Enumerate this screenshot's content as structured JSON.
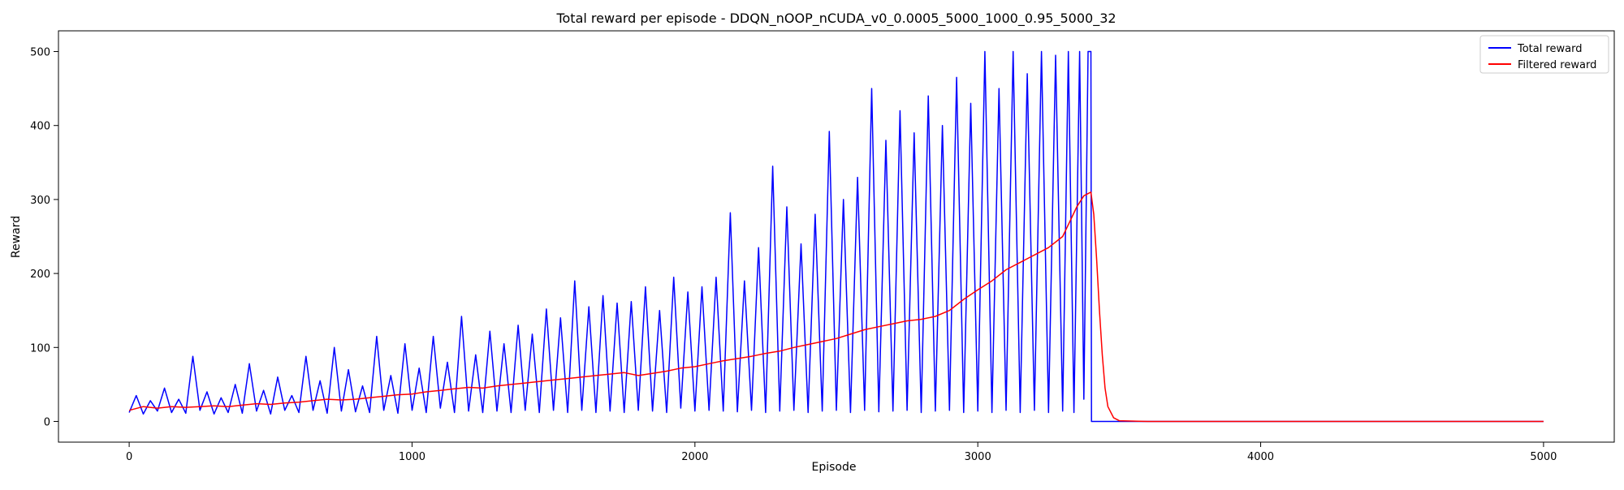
{
  "chart_data": {
    "type": "line",
    "title": "Total reward per episode - DDQN_nOOP_nCUDA_v0_0.0005_5000_1000_0.95_5000_32",
    "xlabel": "Episode",
    "ylabel": "Reward",
    "xlim": [
      -250,
      5250
    ],
    "ylim": [
      -28,
      528
    ],
    "xticks": [
      0,
      1000,
      2000,
      3000,
      4000,
      5000
    ],
    "yticks": [
      0,
      100,
      200,
      300,
      400,
      500
    ],
    "grid": false,
    "legend_position": "top-right",
    "series": [
      {
        "name": "Total reward",
        "color": "#0000ff",
        "points": [
          [
            0,
            12
          ],
          [
            25,
            35
          ],
          [
            50,
            10
          ],
          [
            75,
            28
          ],
          [
            100,
            14
          ],
          [
            125,
            45
          ],
          [
            150,
            12
          ],
          [
            175,
            30
          ],
          [
            200,
            11
          ],
          [
            225,
            88
          ],
          [
            250,
            15
          ],
          [
            275,
            40
          ],
          [
            300,
            10
          ],
          [
            325,
            32
          ],
          [
            350,
            12
          ],
          [
            375,
            50
          ],
          [
            400,
            11
          ],
          [
            425,
            78
          ],
          [
            450,
            14
          ],
          [
            475,
            42
          ],
          [
            500,
            10
          ],
          [
            525,
            60
          ],
          [
            550,
            15
          ],
          [
            575,
            35
          ],
          [
            600,
            12
          ],
          [
            625,
            88
          ],
          [
            650,
            15
          ],
          [
            675,
            55
          ],
          [
            700,
            11
          ],
          [
            725,
            100
          ],
          [
            750,
            14
          ],
          [
            775,
            70
          ],
          [
            800,
            13
          ],
          [
            825,
            48
          ],
          [
            850,
            12
          ],
          [
            875,
            115
          ],
          [
            900,
            15
          ],
          [
            925,
            62
          ],
          [
            950,
            11
          ],
          [
            975,
            105
          ],
          [
            1000,
            15
          ],
          [
            1025,
            72
          ],
          [
            1050,
            12
          ],
          [
            1075,
            115
          ],
          [
            1100,
            18
          ],
          [
            1125,
            80
          ],
          [
            1150,
            12
          ],
          [
            1175,
            142
          ],
          [
            1200,
            14
          ],
          [
            1225,
            90
          ],
          [
            1250,
            12
          ],
          [
            1275,
            122
          ],
          [
            1300,
            14
          ],
          [
            1325,
            105
          ],
          [
            1350,
            12
          ],
          [
            1375,
            130
          ],
          [
            1400,
            15
          ],
          [
            1425,
            118
          ],
          [
            1450,
            12
          ],
          [
            1475,
            152
          ],
          [
            1500,
            15
          ],
          [
            1525,
            140
          ],
          [
            1550,
            12
          ],
          [
            1575,
            190
          ],
          [
            1600,
            15
          ],
          [
            1625,
            155
          ],
          [
            1650,
            12
          ],
          [
            1675,
            170
          ],
          [
            1700,
            14
          ],
          [
            1725,
            160
          ],
          [
            1750,
            12
          ],
          [
            1775,
            162
          ],
          [
            1800,
            15
          ],
          [
            1825,
            182
          ],
          [
            1850,
            14
          ],
          [
            1875,
            150
          ],
          [
            1900,
            12
          ],
          [
            1925,
            195
          ],
          [
            1950,
            18
          ],
          [
            1975,
            175
          ],
          [
            2000,
            14
          ],
          [
            2025,
            182
          ],
          [
            2050,
            15
          ],
          [
            2075,
            195
          ],
          [
            2100,
            14
          ],
          [
            2125,
            282
          ],
          [
            2150,
            13
          ],
          [
            2175,
            190
          ],
          [
            2200,
            15
          ],
          [
            2225,
            235
          ],
          [
            2250,
            12
          ],
          [
            2275,
            345
          ],
          [
            2300,
            14
          ],
          [
            2325,
            290
          ],
          [
            2350,
            15
          ],
          [
            2375,
            240
          ],
          [
            2400,
            12
          ],
          [
            2425,
            280
          ],
          [
            2450,
            14
          ],
          [
            2475,
            392
          ],
          [
            2500,
            15
          ],
          [
            2525,
            300
          ],
          [
            2550,
            12
          ],
          [
            2575,
            330
          ],
          [
            2600,
            15
          ],
          [
            2625,
            450
          ],
          [
            2650,
            13
          ],
          [
            2675,
            380
          ],
          [
            2700,
            14
          ],
          [
            2725,
            420
          ],
          [
            2750,
            15
          ],
          [
            2775,
            390
          ],
          [
            2800,
            12
          ],
          [
            2825,
            440
          ],
          [
            2850,
            14
          ],
          [
            2875,
            400
          ],
          [
            2900,
            15
          ],
          [
            2925,
            465
          ],
          [
            2950,
            12
          ],
          [
            2975,
            430
          ],
          [
            3000,
            14
          ],
          [
            3025,
            500
          ],
          [
            3050,
            12
          ],
          [
            3075,
            450
          ],
          [
            3100,
            15
          ],
          [
            3125,
            500
          ],
          [
            3150,
            12
          ],
          [
            3175,
            470
          ],
          [
            3200,
            15
          ],
          [
            3225,
            500
          ],
          [
            3250,
            12
          ],
          [
            3275,
            495
          ],
          [
            3300,
            14
          ],
          [
            3320,
            500
          ],
          [
            3340,
            12
          ],
          [
            3360,
            500
          ],
          [
            3375,
            30
          ],
          [
            3390,
            500
          ],
          [
            3400,
            500
          ],
          [
            3402,
            0
          ],
          [
            3450,
            0
          ],
          [
            4000,
            0
          ],
          [
            5000,
            0
          ]
        ]
      },
      {
        "name": "Filtered reward",
        "color": "#ff0000",
        "points": [
          [
            0,
            15
          ],
          [
            50,
            20
          ],
          [
            100,
            18
          ],
          [
            150,
            20
          ],
          [
            200,
            19
          ],
          [
            250,
            20
          ],
          [
            300,
            21
          ],
          [
            350,
            20
          ],
          [
            400,
            22
          ],
          [
            450,
            24
          ],
          [
            500,
            23
          ],
          [
            550,
            25
          ],
          [
            600,
            26
          ],
          [
            650,
            28
          ],
          [
            700,
            30
          ],
          [
            750,
            29
          ],
          [
            800,
            30
          ],
          [
            850,
            32
          ],
          [
            900,
            34
          ],
          [
            950,
            36
          ],
          [
            1000,
            37
          ],
          [
            1050,
            40
          ],
          [
            1100,
            42
          ],
          [
            1150,
            44
          ],
          [
            1200,
            46
          ],
          [
            1250,
            45
          ],
          [
            1300,
            48
          ],
          [
            1350,
            50
          ],
          [
            1400,
            52
          ],
          [
            1450,
            54
          ],
          [
            1500,
            56
          ],
          [
            1550,
            58
          ],
          [
            1600,
            60
          ],
          [
            1650,
            62
          ],
          [
            1700,
            64
          ],
          [
            1750,
            66
          ],
          [
            1800,
            62
          ],
          [
            1850,
            65
          ],
          [
            1900,
            68
          ],
          [
            1950,
            72
          ],
          [
            2000,
            74
          ],
          [
            2050,
            78
          ],
          [
            2100,
            82
          ],
          [
            2150,
            85
          ],
          [
            2200,
            88
          ],
          [
            2250,
            92
          ],
          [
            2300,
            95
          ],
          [
            2350,
            100
          ],
          [
            2400,
            104
          ],
          [
            2450,
            108
          ],
          [
            2500,
            112
          ],
          [
            2550,
            118
          ],
          [
            2600,
            124
          ],
          [
            2650,
            128
          ],
          [
            2700,
            132
          ],
          [
            2750,
            136
          ],
          [
            2800,
            138
          ],
          [
            2850,
            142
          ],
          [
            2900,
            150
          ],
          [
            2950,
            165
          ],
          [
            3000,
            178
          ],
          [
            3050,
            190
          ],
          [
            3100,
            205
          ],
          [
            3150,
            215
          ],
          [
            3200,
            225
          ],
          [
            3250,
            235
          ],
          [
            3300,
            250
          ],
          [
            3325,
            270
          ],
          [
            3350,
            290
          ],
          [
            3375,
            305
          ],
          [
            3400,
            310
          ],
          [
            3410,
            280
          ],
          [
            3420,
            220
          ],
          [
            3430,
            150
          ],
          [
            3440,
            90
          ],
          [
            3450,
            45
          ],
          [
            3460,
            20
          ],
          [
            3480,
            5
          ],
          [
            3500,
            1
          ],
          [
            3600,
            0
          ],
          [
            4000,
            0
          ],
          [
            5000,
            0
          ]
        ]
      }
    ]
  }
}
